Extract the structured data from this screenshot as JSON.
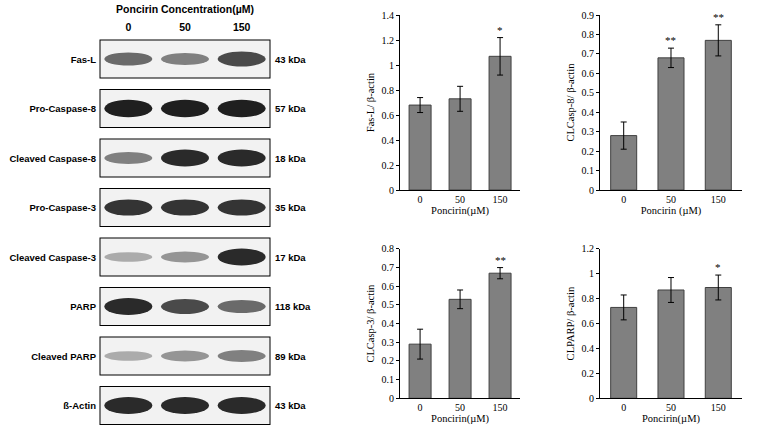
{
  "blot": {
    "title": "Poncirin Concentration(µM)",
    "lanes": [
      "0",
      "50",
      "150"
    ],
    "rows": [
      {
        "label": "Fas-L",
        "size": "43 kDa",
        "intensity": [
          0.6,
          0.5,
          0.75
        ]
      },
      {
        "label": "Pro-Caspase-8",
        "size": "57 kDa",
        "intensity": [
          0.95,
          0.95,
          0.95
        ]
      },
      {
        "label": "Cleaved Caspase-8",
        "size": "18 kDa",
        "intensity": [
          0.5,
          0.9,
          0.9
        ]
      },
      {
        "label": "Pro-Caspase-3",
        "size": "35 kDa",
        "intensity": [
          0.85,
          0.85,
          0.85
        ]
      },
      {
        "label": "Cleaved Caspase-3",
        "size": "17 kDa",
        "intensity": [
          0.3,
          0.4,
          0.9
        ]
      },
      {
        "label": "PARP",
        "size": "118 kDa",
        "intensity": [
          0.9,
          0.75,
          0.6
        ]
      },
      {
        "label": "Cleaved PARP",
        "size": "89 kDa",
        "intensity": [
          0.3,
          0.4,
          0.5
        ]
      },
      {
        "label": "ß-Actin",
        "size": "43 kDa",
        "intensity": [
          0.9,
          0.9,
          0.9
        ]
      }
    ]
  },
  "chart_data": [
    {
      "type": "bar",
      "x_label": "Poncirin(µM)",
      "y_label": "Fas-L/ β-actin",
      "categories": [
        "0",
        "50",
        "150"
      ],
      "values": [
        0.68,
        0.73,
        1.07
      ],
      "errors": [
        0.06,
        0.1,
        0.15
      ],
      "color": "#808080",
      "ylim": [
        0,
        1.4
      ],
      "yticks": [
        0,
        0.2,
        0.4,
        0.6,
        0.8,
        1,
        1.2,
        1.4
      ],
      "grid": false,
      "annotations": [
        {
          "category": "150",
          "text": "*"
        }
      ]
    },
    {
      "type": "bar",
      "x_label": "Poncirin (µM)",
      "y_label": "CLCasp-8/ β-actin",
      "categories": [
        "0",
        "50",
        "150"
      ],
      "values": [
        0.28,
        0.68,
        0.77
      ],
      "errors": [
        0.07,
        0.05,
        0.08
      ],
      "color": "#808080",
      "ylim": [
        0,
        0.9
      ],
      "yticks": [
        0,
        0.1,
        0.2,
        0.3,
        0.4,
        0.5,
        0.6,
        0.7,
        0.8,
        0.9
      ],
      "grid": false,
      "annotations": [
        {
          "category": "50",
          "text": "**"
        },
        {
          "category": "150",
          "text": "**"
        }
      ]
    },
    {
      "type": "bar",
      "x_label": "Poncirin(µM)",
      "y_label": "CLCasp-3/ β-actin",
      "categories": [
        "0",
        "50",
        "150"
      ],
      "values": [
        0.29,
        0.53,
        0.67
      ],
      "errors": [
        0.08,
        0.05,
        0.03
      ],
      "color": "#808080",
      "ylim": [
        0,
        0.8
      ],
      "yticks": [
        0,
        0.1,
        0.2,
        0.3,
        0.4,
        0.5,
        0.6,
        0.7,
        0.8
      ],
      "grid": false,
      "annotations": [
        {
          "category": "150",
          "text": "**"
        }
      ]
    },
    {
      "type": "bar",
      "x_label": "Poncirin(µM)",
      "y_label": "CLPARP/ β-actin",
      "categories": [
        "0",
        "50",
        "150"
      ],
      "values": [
        0.73,
        0.87,
        0.89
      ],
      "errors": [
        0.1,
        0.1,
        0.1
      ],
      "color": "#808080",
      "ylim": [
        0,
        1.2
      ],
      "yticks": [
        0,
        0.2,
        0.4,
        0.6,
        0.8,
        1,
        1.2
      ],
      "grid": false,
      "annotations": [
        {
          "category": "150",
          "text": "*"
        }
      ]
    }
  ]
}
